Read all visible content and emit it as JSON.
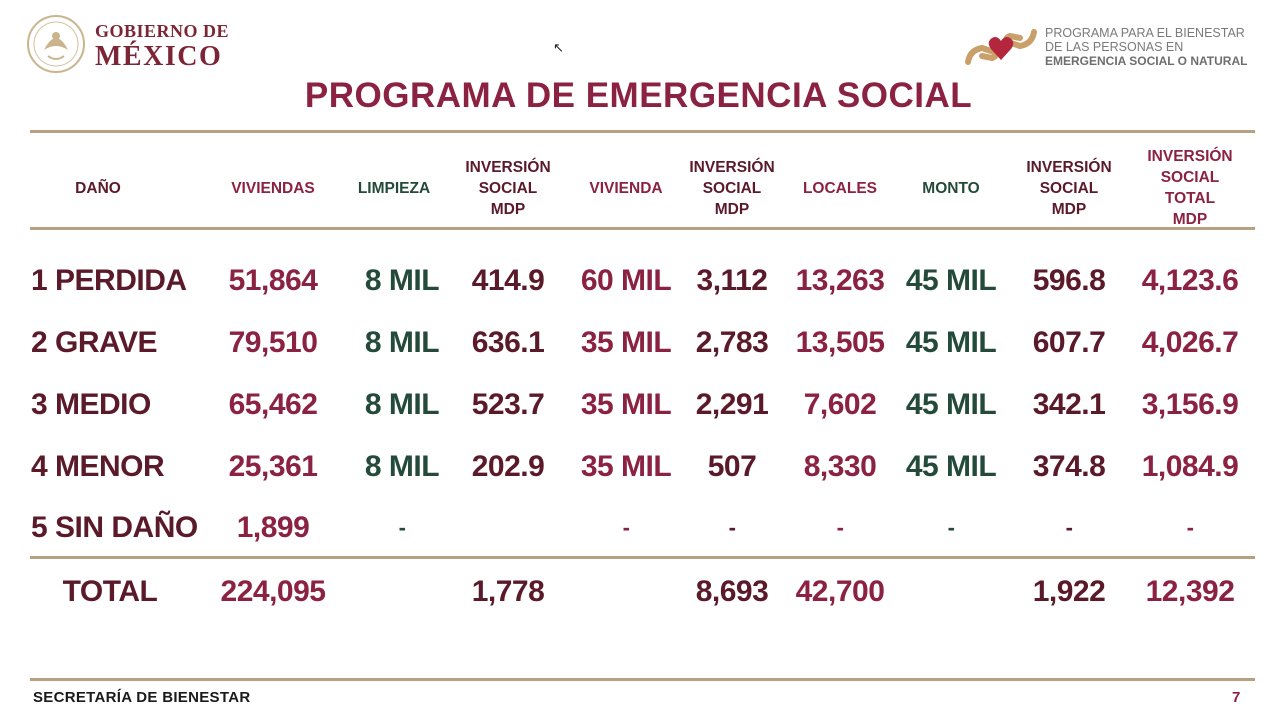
{
  "header": {
    "gov_line1": "GOBIERNO DE",
    "gov_line2": "MÉXICO",
    "program_line1": "PROGRAMA PARA EL BIENESTAR",
    "program_line2": "DE LAS PERSONAS EN",
    "program_line3": "EMERGENCIA SOCIAL O NATURAL",
    "seal_icon": "coat-of-arms-icon",
    "program_icon": "heart-hands-icon"
  },
  "title": "PROGRAMA DE EMERGENCIA SOCIAL",
  "columns": [
    "DAÑO",
    "VIVIENDAS",
    "LIMPIEZA",
    "INVERSIÓN\nSOCIAL\nMDP",
    "VIVIENDA",
    "INVERSIÓN\nSOCIAL\nMDP",
    "LOCALES",
    "MONTO",
    "INVERSIÓN\nSOCIAL\nMDP",
    "INVERSIÓN\nSOCIAL\nTOTAL MDP"
  ],
  "rows": [
    {
      "dano": "1 PERDIDA",
      "cells": [
        "51,864",
        "8 MIL",
        "414.9",
        "60 MIL",
        "3,112",
        "13,263",
        "45 MIL",
        "596.8",
        "4,123.6"
      ]
    },
    {
      "dano": "2 GRAVE",
      "cells": [
        "79,510",
        "8 MIL",
        "636.1",
        "35 MIL",
        "2,783",
        "13,505",
        "45 MIL",
        "607.7",
        "4,026.7"
      ]
    },
    {
      "dano": "3 MEDIO",
      "cells": [
        "65,462",
        "8 MIL",
        "523.7",
        "35 MIL",
        "2,291",
        "7,602",
        "45 MIL",
        "342.1",
        "3,156.9"
      ]
    },
    {
      "dano": "4 MENOR",
      "cells": [
        "25,361",
        "8 MIL",
        "202.9",
        "35 MIL",
        "507",
        "8,330",
        "45 MIL",
        "374.8",
        "1,084.9"
      ]
    },
    {
      "dano": "5 SIN DAÑO",
      "cells": [
        "1,899",
        "-",
        "",
        "-",
        "-",
        "-",
        "-",
        "-",
        "-"
      ]
    }
  ],
  "total": {
    "label": "TOTAL",
    "cells": [
      "224,095",
      "",
      "1,778",
      "",
      "8,693",
      "42,700",
      "",
      "1,922",
      "12,392"
    ]
  },
  "footer": {
    "text": "SECRETARÍA DE BIENESTAR",
    "page": "7"
  }
}
